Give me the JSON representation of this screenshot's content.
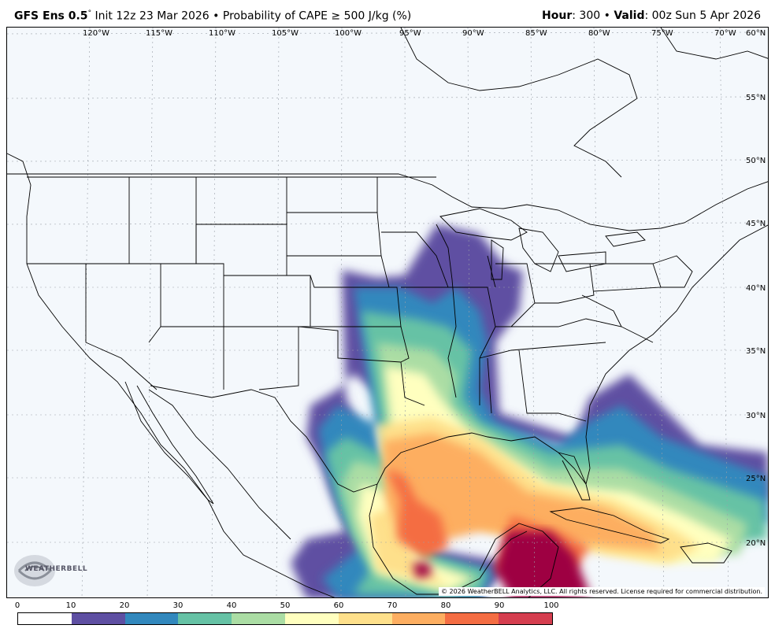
{
  "header": {
    "model": "GFS Ens 0.5",
    "degree": "°",
    "init": "Init 12z 23 Mar 2026",
    "bullet": "•",
    "product": "Probability of CAPE ≥ 500 J/kg (%)",
    "hour_label": "Hour",
    "hour_value": ": 300",
    "valid_label": "Valid",
    "valid_value": ": 00z Sun 5 Apr 2026"
  },
  "longitude_labels": [
    "120°W",
    "115°W",
    "110°W",
    "105°W",
    "100°W",
    "95°W",
    "90°W",
    "85°W",
    "80°W",
    "75°W",
    "70°W"
  ],
  "latitude_labels": [
    "60°N",
    "55°N",
    "50°N",
    "45°N",
    "40°N",
    "35°N",
    "30°N",
    "25°N",
    "20°N"
  ],
  "copyright": "© 2026 WeatherBELL Analytics, LLC. All rights reserved. License required for commercial distribution.",
  "logo": {
    "text": "WEATHERBELL"
  },
  "colorbar": {
    "ticks": [
      "0",
      "10",
      "20",
      "30",
      "40",
      "50",
      "60",
      "70",
      "80",
      "90",
      "100"
    ],
    "colors": [
      "#ffffff",
      "#5e4fa2",
      "#3288bd",
      "#66c2a5",
      "#abdda4",
      "#ffffbf",
      "#fee08b",
      "#fdae61",
      "#f46d43",
      "#d53e4f",
      "#9e0142"
    ]
  }
}
